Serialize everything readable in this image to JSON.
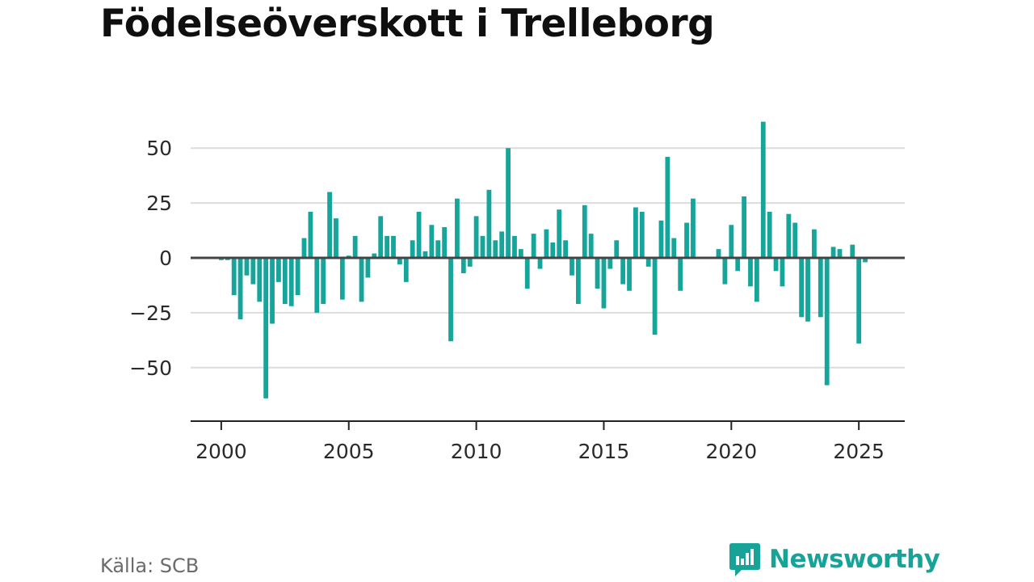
{
  "title": "Födelseöverskott i Trelleborg",
  "source": "Källa: SCB",
  "brand": {
    "name": "Newsworthy",
    "icon": "newsworthy-logo-icon",
    "color": "#17a398"
  },
  "colors": {
    "bar": "#16a59a",
    "grid": "#dcdcdc",
    "zero": "#444444",
    "axis": "#222222"
  },
  "chart_data": {
    "type": "bar",
    "title": "Födelseöverskott i Trelleborg",
    "xlabel": "",
    "ylabel": "",
    "grid": true,
    "legend": "none",
    "x_ticks": [
      "2000",
      "2005",
      "2010",
      "2015",
      "2020",
      "2025"
    ],
    "y_ticks": [
      "50",
      "25",
      "0",
      "−25",
      "−50"
    ],
    "xlim": [
      1998.8,
      2026.8
    ],
    "ylim": [
      -74,
      74
    ],
    "series": [
      {
        "x": [
          2000.0,
          2000.25,
          2000.5,
          2000.75,
          2001.0,
          2001.25,
          2001.5,
          2001.75,
          2002.0,
          2002.25,
          2002.5,
          2002.75,
          2003.0,
          2003.25,
          2003.5,
          2003.75,
          2004.0,
          2004.25,
          2004.5,
          2004.75,
          2005.0,
          2005.25,
          2005.5,
          2005.75,
          2006.0,
          2006.25,
          2006.5,
          2006.75,
          2007.0,
          2007.25,
          2007.5,
          2007.75,
          2008.0,
          2008.25,
          2008.5,
          2008.75,
          2009.0,
          2009.25,
          2009.5,
          2009.75,
          2010.0,
          2010.25,
          2010.5,
          2010.75,
          2011.0,
          2011.25,
          2011.5,
          2011.75,
          2012.0,
          2012.25,
          2012.5,
          2012.75,
          2013.0,
          2013.25,
          2013.5,
          2013.75,
          2014.0,
          2014.25,
          2014.5,
          2014.75,
          2015.0,
          2015.25,
          2015.5,
          2015.75,
          2016.0,
          2016.25,
          2016.5,
          2016.75,
          2017.0,
          2017.25,
          2017.5,
          2017.75,
          2018.0,
          2018.25,
          2018.5,
          2018.75,
          2019.0,
          2019.25,
          2019.5,
          2019.75,
          2020.0,
          2020.25,
          2020.5,
          2020.75,
          2021.0,
          2021.25,
          2021.5,
          2021.75,
          2022.0,
          2022.25,
          2022.5,
          2022.75,
          2023.0,
          2023.25,
          2023.5,
          2023.75,
          2024.0,
          2024.25,
          2024.5,
          2024.75,
          2025.0,
          2025.25
        ],
        "values": [
          -1,
          -1,
          -17,
          -28,
          -8,
          -12,
          -20,
          -64,
          -30,
          -11,
          -21,
          -22,
          -17,
          9,
          21,
          -25,
          -21,
          30,
          18,
          -19,
          1,
          10,
          -20,
          -9,
          2,
          19,
          10,
          10,
          -3,
          -11,
          8,
          21,
          3,
          15,
          8,
          14,
          -38,
          27,
          -7,
          -4,
          19,
          10,
          31,
          8,
          12,
          50,
          10,
          4,
          -14,
          11,
          -5,
          13,
          7,
          22,
          8,
          -8,
          -21,
          24,
          11,
          -14,
          -23,
          -5,
          8,
          -12,
          -15,
          23,
          21,
          -4,
          -35,
          17,
          46,
          9,
          -15,
          16,
          27,
          0,
          0,
          0,
          4,
          -12,
          15,
          -6,
          28,
          -13,
          -20,
          62,
          21,
          -6,
          -13,
          20,
          16,
          -27,
          -29,
          13,
          -27,
          -58,
          5,
          4,
          0,
          6,
          -39,
          -2
        ]
      }
    ]
  }
}
